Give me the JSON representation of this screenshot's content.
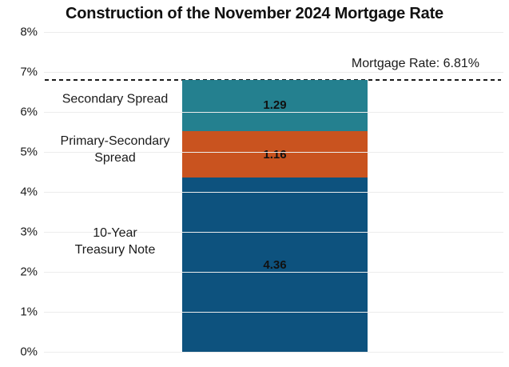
{
  "title": "Construction of the November 2024 Mortgage Rate",
  "chart_data": {
    "type": "bar",
    "stacked": true,
    "orientation": "vertical",
    "title": "Construction of the November 2024 Mortgage Rate",
    "categories": [
      "November 2024 Mortgage Rate"
    ],
    "series": [
      {
        "name": "10-Year Treasury Note",
        "label": "10-Year\nTreasury Note",
        "values": [
          4.36
        ],
        "color": "#0d527e"
      },
      {
        "name": "Primary-Secondary Spread",
        "label": "Primary-Secondary\nSpread",
        "values": [
          1.16
        ],
        "color": "#c9531f"
      },
      {
        "name": "Secondary Spread",
        "label": "Secondary Spread",
        "values": [
          1.29
        ],
        "color": "#24808f"
      }
    ],
    "total": 6.81,
    "reference_line": {
      "value": 6.81,
      "label": "Mortgage Rate: 6.81%",
      "style": "dashed",
      "color": "#1a1a1a"
    },
    "xlabel": "",
    "ylabel": "",
    "ylim": [
      0,
      8
    ],
    "yticks": [
      "0%",
      "1%",
      "2%",
      "3%",
      "4%",
      "5%",
      "6%",
      "7%",
      "8%"
    ],
    "grid": "horizontal",
    "gridline_color": "#ececec",
    "legend_position": "none",
    "value_label_format": "0.00"
  }
}
